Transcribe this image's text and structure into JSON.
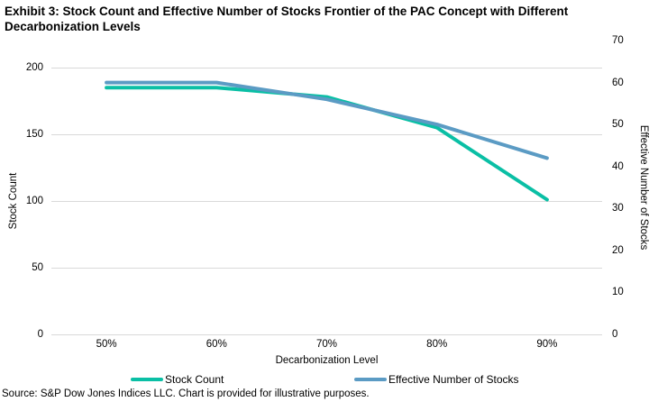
{
  "title": "Exhibit 3: Stock Count and Effective Number of Stocks Frontier of the PAC Concept with Different Decarbonization Levels",
  "source_note": "Source: S&P Dow Jones Indices LLC. Chart is provided for illustrative purposes.",
  "colors": {
    "teal": "#0ABFA5",
    "blue": "#5B9BC4",
    "gridline": "#D9D9D9",
    "text": "#000000"
  },
  "chart_data": {
    "type": "line",
    "categories": [
      "50%",
      "60%",
      "70%",
      "80%",
      "90%"
    ],
    "series": [
      {
        "name": "Stock Count",
        "axis": "left",
        "color": "#0ABFA5",
        "values": [
          185,
          185,
          178,
          155,
          101
        ]
      },
      {
        "name": "Effective Number of Stocks",
        "axis": "right",
        "color": "#5B9BC4",
        "values": [
          60,
          60,
          56,
          50,
          42
        ]
      }
    ],
    "xlabel": "Decarbonization Level",
    "ylabel_left": "Stock Count",
    "ylabel_right": "Effective Number of Stocks",
    "left_axis": {
      "min": 0,
      "max": 200,
      "ticks": [
        0,
        50,
        100,
        150,
        200
      ]
    },
    "right_axis": {
      "min": 0,
      "max": 70,
      "ticks": [
        0,
        10,
        20,
        30,
        40,
        50,
        60,
        70
      ]
    },
    "grid": "horizontal",
    "legend_position": "bottom"
  }
}
